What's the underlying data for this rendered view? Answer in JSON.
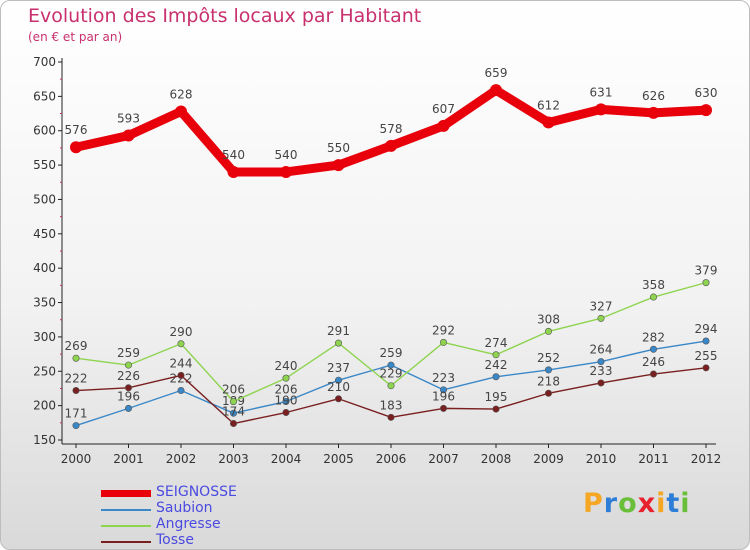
{
  "title": "Evolution des Impôts locaux par Habitant",
  "subtitle": "(en € et par an)",
  "logo": {
    "letters": [
      "P",
      "r",
      "o",
      "x",
      "i",
      "t",
      "i"
    ],
    "colors": [
      "#f5a623",
      "#2e7dd7",
      "#6abf3a",
      "#e8212e",
      "#f5a623",
      "#2e7dd7",
      "#6abf3a"
    ]
  },
  "chart_data": {
    "type": "line",
    "title": "Evolution des Impôts locaux par Habitant",
    "subtitle": "(en € et par an)",
    "categories": [
      "2000",
      "2001",
      "2002",
      "2003",
      "2004",
      "2005",
      "2006",
      "2007",
      "2008",
      "2009",
      "2010",
      "2011",
      "2012"
    ],
    "ylim": [
      150,
      700
    ],
    "yticks": [
      150,
      200,
      250,
      300,
      350,
      400,
      450,
      500,
      550,
      600,
      650,
      700
    ],
    "grid": false,
    "legend": "bottom-left",
    "series": [
      {
        "name": "SEIGNOSSE",
        "color": "#e8000b",
        "values": [
          576,
          593,
          628,
          540,
          540,
          550,
          578,
          607,
          659,
          612,
          631,
          626,
          630
        ]
      },
      {
        "name": "Saubion",
        "color": "#3a87c7",
        "values": [
          171,
          196,
          222,
          189,
          206,
          237,
          259,
          223,
          242,
          252,
          264,
          282,
          294
        ]
      },
      {
        "name": "Angresse",
        "color": "#8ed44f",
        "values": [
          269,
          259,
          290,
          206,
          240,
          291,
          229,
          292,
          274,
          308,
          327,
          358,
          379
        ]
      },
      {
        "name": "Tosse",
        "color": "#7a1f1f",
        "values": [
          222,
          226,
          244,
          174,
          190,
          210,
          183,
          196,
          195,
          218,
          233,
          246,
          255
        ]
      }
    ]
  }
}
